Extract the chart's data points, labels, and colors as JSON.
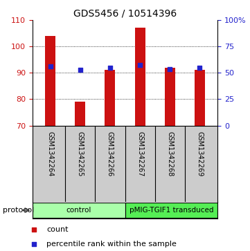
{
  "title": "GDS5456 / 10514396",
  "samples": [
    "GSM1342264",
    "GSM1342265",
    "GSM1342266",
    "GSM1342267",
    "GSM1342268",
    "GSM1342269"
  ],
  "counts": [
    104.0,
    79.0,
    91.0,
    107.0,
    92.0,
    91.0
  ],
  "percentiles_left_axis": [
    92.5,
    91.2,
    92.0,
    93.0,
    91.5,
    91.8
  ],
  "ylim_left": [
    70,
    110
  ],
  "ylim_right": [
    0,
    100
  ],
  "yticks_left": [
    70,
    80,
    90,
    100,
    110
  ],
  "yticks_right": [
    0,
    25,
    50,
    75,
    100
  ],
  "ytick_labels_right": [
    "0",
    "25",
    "50",
    "75",
    "100%"
  ],
  "bar_color": "#cc1111",
  "dot_color": "#2222cc",
  "bar_width": 0.35,
  "bar_bottom": 70,
  "groups": [
    {
      "label": "control",
      "indices": [
        0,
        1,
        2
      ],
      "color": "#aaffaa"
    },
    {
      "label": "pMIG-TGIF1 transduced",
      "indices": [
        3,
        4,
        5
      ],
      "color": "#55ee55"
    }
  ],
  "protocol_label": "protocol",
  "legend_count_label": "count",
  "legend_percentile_label": "percentile rank within the sample",
  "grid_yticks": [
    80,
    90,
    100
  ],
  "figure_bg": "#ffffff",
  "axes_bg": "#ffffff",
  "label_area_bg": "#cccccc"
}
